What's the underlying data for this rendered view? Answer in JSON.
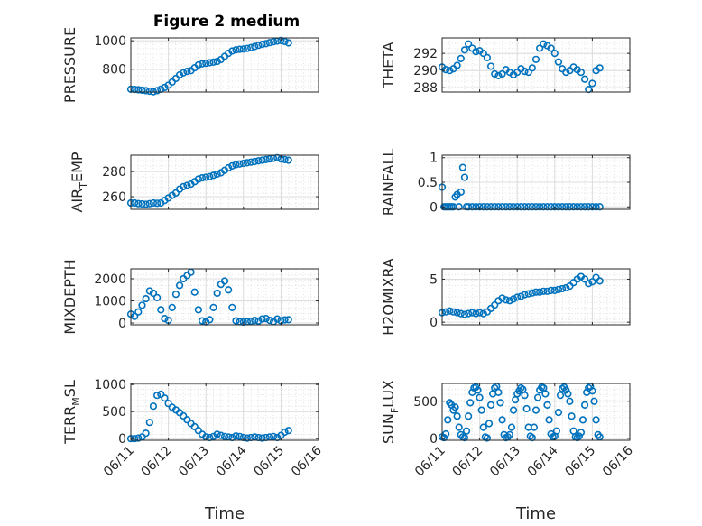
{
  "figure": {
    "title": "Figure 2 medium",
    "xlabel": "Time",
    "marker_color": "#0072BD",
    "xtick_labels": [
      "06/11",
      "06/12",
      "06/13",
      "06/14",
      "06/15",
      "06/16"
    ]
  },
  "chart_data": [
    {
      "type": "scatter",
      "id": "pressure",
      "ylabel": "PRESSURE",
      "ylabel_base": "PRESSURE",
      "ylabel_sub": "",
      "ylabel_tail": "",
      "xlim": [
        0,
        5
      ],
      "ylim": [
        640,
        1020
      ],
      "yticks": [
        800,
        1000
      ],
      "x": [
        0.0,
        0.1,
        0.2,
        0.3,
        0.4,
        0.5,
        0.6,
        0.7,
        0.8,
        0.9,
        1.0,
        1.1,
        1.2,
        1.3,
        1.4,
        1.5,
        1.6,
        1.7,
        1.8,
        1.9,
        2.0,
        2.1,
        2.2,
        2.3,
        2.4,
        2.5,
        2.6,
        2.7,
        2.8,
        2.9,
        3.0,
        3.1,
        3.2,
        3.3,
        3.4,
        3.5,
        3.6,
        3.7,
        3.8,
        3.9,
        4.0,
        4.1,
        4.2
      ],
      "y": [
        660,
        658,
        656,
        653,
        650,
        646,
        642,
        650,
        660,
        672,
        688,
        710,
        735,
        760,
        775,
        785,
        790,
        810,
        830,
        838,
        842,
        846,
        850,
        855,
        868,
        890,
        912,
        928,
        936,
        940,
        942,
        946,
        952,
        960,
        968,
        975,
        980,
        987,
        993,
        998,
        1002,
        995,
        985
      ]
    },
    {
      "type": "scatter",
      "id": "theta",
      "ylabel": "THETA",
      "ylabel_base": "THETA",
      "ylabel_sub": "",
      "ylabel_tail": "",
      "xlim": [
        0,
        5
      ],
      "ylim": [
        287.5,
        293.8
      ],
      "yticks": [
        288,
        290,
        292
      ],
      "x": [
        0.0,
        0.1,
        0.2,
        0.3,
        0.4,
        0.5,
        0.6,
        0.7,
        0.8,
        0.9,
        1.0,
        1.1,
        1.2,
        1.3,
        1.4,
        1.5,
        1.6,
        1.7,
        1.8,
        1.9,
        2.0,
        2.1,
        2.2,
        2.3,
        2.4,
        2.5,
        2.6,
        2.7,
        2.8,
        2.9,
        3.0,
        3.1,
        3.2,
        3.3,
        3.4,
        3.5,
        3.6,
        3.7,
        3.8,
        3.9,
        4.0,
        4.1,
        4.2
      ],
      "y": [
        290.4,
        290.1,
        290.0,
        290.2,
        290.6,
        291.4,
        292.4,
        293.1,
        292.6,
        292.2,
        292.3,
        292.0,
        291.5,
        290.5,
        289.6,
        289.4,
        289.6,
        290.1,
        289.8,
        289.5,
        289.8,
        290.2,
        289.9,
        289.8,
        290.3,
        291.3,
        292.6,
        293.1,
        292.9,
        292.6,
        292.0,
        291.0,
        290.2,
        289.8,
        290.0,
        290.4,
        290.1,
        289.8,
        289.0,
        287.8,
        288.5,
        290.0,
        290.3
      ]
    },
    {
      "type": "scatter",
      "id": "airtemp",
      "ylabel": "AIR_TEMP",
      "ylabel_base": "AIR",
      "ylabel_sub": "T",
      "ylabel_tail": "EMP",
      "xlim": [
        0,
        5
      ],
      "ylim": [
        250,
        293
      ],
      "yticks": [
        260,
        280
      ],
      "x": [
        0.0,
        0.1,
        0.2,
        0.3,
        0.4,
        0.5,
        0.6,
        0.7,
        0.8,
        0.9,
        1.0,
        1.1,
        1.2,
        1.3,
        1.4,
        1.5,
        1.6,
        1.7,
        1.8,
        1.9,
        2.0,
        2.1,
        2.2,
        2.3,
        2.4,
        2.5,
        2.6,
        2.7,
        2.8,
        2.9,
        3.0,
        3.1,
        3.2,
        3.3,
        3.4,
        3.5,
        3.6,
        3.7,
        3.8,
        3.9,
        4.0,
        4.1,
        4.2
      ],
      "y": [
        255,
        255,
        254.5,
        254.3,
        254,
        254.5,
        255,
        254.8,
        255,
        257,
        259,
        261,
        263,
        266,
        268,
        269,
        270,
        272,
        274,
        275,
        275.5,
        276,
        277,
        278,
        279,
        281,
        283,
        284.5,
        285.5,
        286,
        286.5,
        287,
        287.5,
        288,
        288.5,
        289,
        289.5,
        290,
        290.5,
        291,
        290,
        289.5,
        289
      ]
    },
    {
      "type": "scatter",
      "id": "rainfall",
      "ylabel": "RAINFALL",
      "ylabel_base": "RAINFALL",
      "ylabel_sub": "",
      "ylabel_tail": "",
      "xlim": [
        0,
        5
      ],
      "ylim": [
        -0.05,
        1.05
      ],
      "yticks": [
        0,
        0.5,
        1
      ],
      "x": [
        0.0,
        0.05,
        0.1,
        0.15,
        0.2,
        0.25,
        0.3,
        0.35,
        0.4,
        0.45,
        0.5,
        0.55,
        0.6,
        0.65,
        0.7,
        0.8,
        0.9,
        1.0,
        1.1,
        1.2,
        1.3,
        1.4,
        1.5,
        1.6,
        1.7,
        1.8,
        1.9,
        2.0,
        2.1,
        2.2,
        2.3,
        2.4,
        2.5,
        2.6,
        2.7,
        2.8,
        2.9,
        3.0,
        3.1,
        3.2,
        3.3,
        3.4,
        3.5,
        3.6,
        3.7,
        3.8,
        3.9,
        4.0,
        4.1,
        4.2
      ],
      "y": [
        0.4,
        0,
        0,
        0,
        0,
        0,
        0,
        0.2,
        0.25,
        0,
        0.3,
        0.8,
        0.6,
        0,
        0,
        0,
        0,
        0,
        0,
        0,
        0,
        0,
        0,
        0,
        0,
        0,
        0,
        0,
        0,
        0,
        0,
        0,
        0,
        0,
        0,
        0,
        0,
        0,
        0,
        0,
        0,
        0,
        0,
        0,
        0,
        0,
        0,
        0,
        0,
        0
      ]
    },
    {
      "type": "scatter",
      "id": "mixdepth",
      "ylabel": "MIXDEPTH",
      "ylabel_base": "MIXDEPTH",
      "ylabel_sub": "",
      "ylabel_tail": "",
      "xlim": [
        0,
        5
      ],
      "ylim": [
        -80,
        2450
      ],
      "yticks": [
        0,
        1000,
        2000
      ],
      "x": [
        0.0,
        0.1,
        0.2,
        0.3,
        0.4,
        0.5,
        0.6,
        0.7,
        0.8,
        0.9,
        1.0,
        1.1,
        1.2,
        1.3,
        1.4,
        1.5,
        1.6,
        1.7,
        1.8,
        1.9,
        2.0,
        2.1,
        2.2,
        2.3,
        2.4,
        2.5,
        2.6,
        2.7,
        2.8,
        2.9,
        3.0,
        3.1,
        3.2,
        3.3,
        3.4,
        3.5,
        3.6,
        3.7,
        3.8,
        3.9,
        4.0,
        4.1,
        4.2
      ],
      "y": [
        400,
        300,
        500,
        800,
        1100,
        1450,
        1350,
        1150,
        600,
        200,
        120,
        700,
        1300,
        1700,
        2000,
        2150,
        2300,
        1400,
        600,
        100,
        50,
        150,
        700,
        1350,
        1750,
        1900,
        1500,
        700,
        100,
        60,
        40,
        60,
        80,
        120,
        90,
        180,
        200,
        120,
        60,
        180,
        100,
        140,
        150
      ]
    },
    {
      "type": "scatter",
      "id": "h2omixra",
      "ylabel": "H2OMIXRA",
      "ylabel_base": "H2OMIXRA",
      "ylabel_sub": "",
      "ylabel_tail": "",
      "xlim": [
        0,
        5
      ],
      "ylim": [
        -0.3,
        6.2
      ],
      "yticks": [
        0,
        5
      ],
      "x": [
        0.0,
        0.1,
        0.2,
        0.3,
        0.4,
        0.5,
        0.6,
        0.7,
        0.8,
        0.9,
        1.0,
        1.1,
        1.2,
        1.3,
        1.4,
        1.5,
        1.6,
        1.7,
        1.8,
        1.9,
        2.0,
        2.1,
        2.2,
        2.3,
        2.4,
        2.5,
        2.6,
        2.7,
        2.8,
        2.9,
        3.0,
        3.1,
        3.2,
        3.3,
        3.4,
        3.5,
        3.6,
        3.7,
        3.8,
        3.9,
        4.0,
        4.1,
        4.2
      ],
      "y": [
        1.1,
        1.2,
        1.3,
        1.2,
        1.1,
        1.0,
        0.9,
        1.0,
        1.1,
        1.0,
        1.1,
        1.0,
        1.2,
        1.6,
        2.0,
        2.5,
        2.8,
        2.6,
        2.5,
        2.7,
        2.9,
        3.0,
        3.2,
        3.3,
        3.4,
        3.5,
        3.5,
        3.6,
        3.6,
        3.7,
        3.7,
        3.8,
        3.9,
        4.0,
        4.2,
        4.6,
        5.0,
        5.3,
        5.0,
        4.5,
        4.7,
        5.2,
        4.8
      ]
    },
    {
      "type": "scatter",
      "id": "terrmsl",
      "ylabel": "TERR_MSL",
      "ylabel_base": "TERR",
      "ylabel_sub": "M",
      "ylabel_tail": "SL",
      "xlim": [
        0,
        5
      ],
      "ylim": [
        -30,
        1020
      ],
      "yticks": [
        0,
        500,
        1000
      ],
      "x": [
        0.0,
        0.1,
        0.2,
        0.3,
        0.4,
        0.5,
        0.6,
        0.7,
        0.8,
        0.9,
        1.0,
        1.1,
        1.2,
        1.3,
        1.4,
        1.5,
        1.6,
        1.7,
        1.8,
        1.9,
        2.0,
        2.1,
        2.2,
        2.3,
        2.4,
        2.5,
        2.6,
        2.7,
        2.8,
        2.9,
        3.0,
        3.1,
        3.2,
        3.3,
        3.4,
        3.5,
        3.6,
        3.7,
        3.8,
        3.9,
        4.0,
        4.1,
        4.2
      ],
      "y": [
        0,
        0,
        10,
        30,
        100,
        300,
        600,
        800,
        820,
        750,
        650,
        580,
        530,
        480,
        420,
        350,
        280,
        220,
        150,
        80,
        30,
        20,
        40,
        80,
        60,
        40,
        30,
        20,
        50,
        40,
        20,
        10,
        20,
        30,
        20,
        10,
        20,
        30,
        40,
        20,
        60,
        120,
        150
      ]
    },
    {
      "type": "scatter",
      "id": "sunflux",
      "ylabel": "SUN_FLUX",
      "ylabel_base": "SUN",
      "ylabel_sub": "F",
      "ylabel_tail": "LUX",
      "xlim": [
        0,
        5
      ],
      "ylim": [
        -25,
        740
      ],
      "yticks": [
        0,
        500
      ],
      "x": [
        0.0,
        0.05,
        0.1,
        0.15,
        0.2,
        0.25,
        0.3,
        0.35,
        0.4,
        0.45,
        0.5,
        0.55,
        0.6,
        0.65,
        0.7,
        0.75,
        0.8,
        0.85,
        0.9,
        0.95,
        1.0,
        1.05,
        1.1,
        1.15,
        1.2,
        1.25,
        1.3,
        1.35,
        1.4,
        1.45,
        1.5,
        1.55,
        1.6,
        1.65,
        1.7,
        1.75,
        1.8,
        1.85,
        1.9,
        1.95,
        2.0,
        2.05,
        2.1,
        2.15,
        2.2,
        2.25,
        2.3,
        2.35,
        2.4,
        2.45,
        2.5,
        2.55,
        2.6,
        2.65,
        2.7,
        2.75,
        2.8,
        2.85,
        2.9,
        2.95,
        3.0,
        3.05,
        3.1,
        3.15,
        3.2,
        3.25,
        3.3,
        3.35,
        3.4,
        3.45,
        3.5,
        3.55,
        3.6,
        3.65,
        3.7,
        3.75,
        3.8,
        3.85,
        3.9,
        3.95,
        4.0,
        4.05,
        4.1,
        4.15,
        4.2
      ],
      "y": [
        20,
        10,
        60,
        250,
        480,
        450,
        380,
        420,
        300,
        150,
        50,
        20,
        10,
        100,
        300,
        480,
        620,
        680,
        690,
        650,
        550,
        380,
        150,
        20,
        5,
        200,
        450,
        600,
        680,
        700,
        620,
        480,
        250,
        50,
        10,
        20,
        50,
        150,
        380,
        520,
        600,
        640,
        680,
        660,
        580,
        400,
        150,
        30,
        10,
        150,
        380,
        550,
        650,
        690,
        680,
        600,
        450,
        250,
        60,
        20,
        30,
        100,
        350,
        580,
        670,
        690,
        650,
        600,
        500,
        300,
        100,
        20,
        10,
        30,
        80,
        250,
        450,
        620,
        680,
        700,
        640,
        500,
        250,
        50,
        20
      ]
    }
  ]
}
